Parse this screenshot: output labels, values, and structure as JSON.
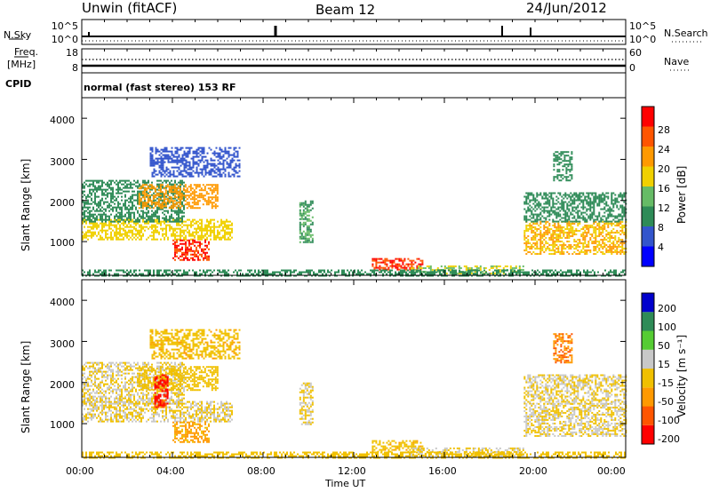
{
  "header": {
    "station": "Unwin (fitACF)",
    "beam": "Beam 12",
    "date": "24/Jun/2012"
  },
  "nsky_panel": {
    "left_label": "N.Sky",
    "right_label": "N.Search",
    "left_ticks": [
      "10^5",
      "10^0"
    ],
    "right_ticks": [
      "10^5",
      "10^0"
    ]
  },
  "freq_panel": {
    "left_label_top": "Freq.",
    "left_label_bottom": "[MHz]",
    "right_label": "Nave",
    "left_ticks": [
      "18",
      "8"
    ],
    "right_ticks": [
      "60",
      "0"
    ]
  },
  "cpid": {
    "label": "CPID",
    "text": "normal (fast stereo) 153 RF"
  },
  "power_panel": {
    "ylabel": "Slant Range [km]",
    "yticks": [
      "4000",
      "3000",
      "2000",
      "1000"
    ],
    "colorbar_label": "Power [dB]",
    "colorbar_ticks": [
      "28",
      "24",
      "20",
      "16",
      "12",
      "8",
      "4"
    ]
  },
  "velocity_panel": {
    "ylabel": "Slant Range [km]",
    "yticks": [
      "4000",
      "3000",
      "2000",
      "1000"
    ],
    "colorbar_label": "Velocity [m s⁻¹]",
    "colorbar_ticks": [
      "200",
      "100",
      "50",
      "15",
      "-15",
      "-50",
      "-100",
      "-200"
    ]
  },
  "xaxis": {
    "label": "Time UT",
    "ticks": [
      "00:00",
      "04:00",
      "08:00",
      "12:00",
      "16:00",
      "20:00",
      "00:00"
    ]
  },
  "chart_data": [
    {
      "type": "heatmap",
      "title": "Power",
      "x_unit": "hours UT",
      "y_unit": "km",
      "xlim": [
        0,
        24
      ],
      "ylim": [
        180,
        4500
      ],
      "colorbar": {
        "min": 0,
        "max": 32,
        "colors": [
          "#0000ff",
          "#3355cc",
          "#2e8b57",
          "#66bb66",
          "#f0d000",
          "#ff9900",
          "#ff5500",
          "#ff0000"
        ]
      },
      "regions": [
        {
          "t": [
            0.0,
            6.6
          ],
          "r": [
            1050,
            1550
          ],
          "v": 18
        },
        {
          "t": [
            0.0,
            4.5
          ],
          "r": [
            1500,
            2500
          ],
          "v": 10
        },
        {
          "t": [
            2.5,
            6.0
          ],
          "r": [
            1800,
            2400
          ],
          "v": 22
        },
        {
          "t": [
            3.0,
            7.0
          ],
          "r": [
            2600,
            3300
          ],
          "v": 6
        },
        {
          "t": [
            4.0,
            5.6
          ],
          "r": [
            550,
            1050
          ],
          "v": 28
        },
        {
          "t": [
            9.6,
            10.2
          ],
          "r": [
            1000,
            2000
          ],
          "v": 12
        },
        {
          "t": [
            12.8,
            15.0
          ],
          "r": [
            300,
            600
          ],
          "v": 28
        },
        {
          "t": [
            14.5,
            19.5
          ],
          "r": [
            220,
            420
          ],
          "v": 16
        },
        {
          "t": [
            19.5,
            24.0
          ],
          "r": [
            700,
            1500
          ],
          "v": 20
        },
        {
          "t": [
            19.5,
            24.0
          ],
          "r": [
            1500,
            2200
          ],
          "v": 10
        },
        {
          "t": [
            20.8,
            21.6
          ],
          "r": [
            2500,
            3200
          ],
          "v": 10
        },
        {
          "t": [
            0.0,
            24.0
          ],
          "r": [
            180,
            320
          ],
          "v": 10
        }
      ]
    },
    {
      "type": "heatmap",
      "title": "Velocity",
      "x_unit": "hours UT",
      "y_unit": "km",
      "xlim": [
        0,
        24
      ],
      "ylim": [
        180,
        4500
      ],
      "colorbar": {
        "min": -250,
        "max": 250,
        "colors": [
          "#ff0000",
          "#ff5500",
          "#ff9900",
          "#f0c000",
          "#c8c8c8",
          "#55cc33",
          "#2e8b57",
          "#0000cc"
        ]
      },
      "regions": [
        {
          "t": [
            0.0,
            6.6
          ],
          "r": [
            1050,
            1550
          ],
          "v": 0
        },
        {
          "t": [
            0.0,
            4.5
          ],
          "r": [
            1500,
            2500
          ],
          "v": 0
        },
        {
          "t": [
            2.5,
            6.0
          ],
          "r": [
            1800,
            2400
          ],
          "v": -30
        },
        {
          "t": [
            3.0,
            7.0
          ],
          "r": [
            2600,
            3300
          ],
          "v": -40
        },
        {
          "t": [
            4.0,
            5.6
          ],
          "r": [
            550,
            1050
          ],
          "v": -80
        },
        {
          "t": [
            3.2,
            3.8
          ],
          "r": [
            1400,
            2200
          ],
          "v": -200
        },
        {
          "t": [
            9.6,
            10.2
          ],
          "r": [
            1000,
            2000
          ],
          "v": 0
        },
        {
          "t": [
            12.8,
            15.0
          ],
          "r": [
            300,
            600
          ],
          "v": -40
        },
        {
          "t": [
            14.5,
            19.5
          ],
          "r": [
            220,
            420
          ],
          "v": 0
        },
        {
          "t": [
            19.5,
            24.0
          ],
          "r": [
            700,
            1500
          ],
          "v": 0
        },
        {
          "t": [
            19.5,
            24.0
          ],
          "r": [
            1500,
            2200
          ],
          "v": 0
        },
        {
          "t": [
            20.8,
            21.6
          ],
          "r": [
            2500,
            3200
          ],
          "v": -120
        },
        {
          "t": [
            0.0,
            24.0
          ],
          "r": [
            180,
            320
          ],
          "v": -30
        }
      ]
    }
  ]
}
